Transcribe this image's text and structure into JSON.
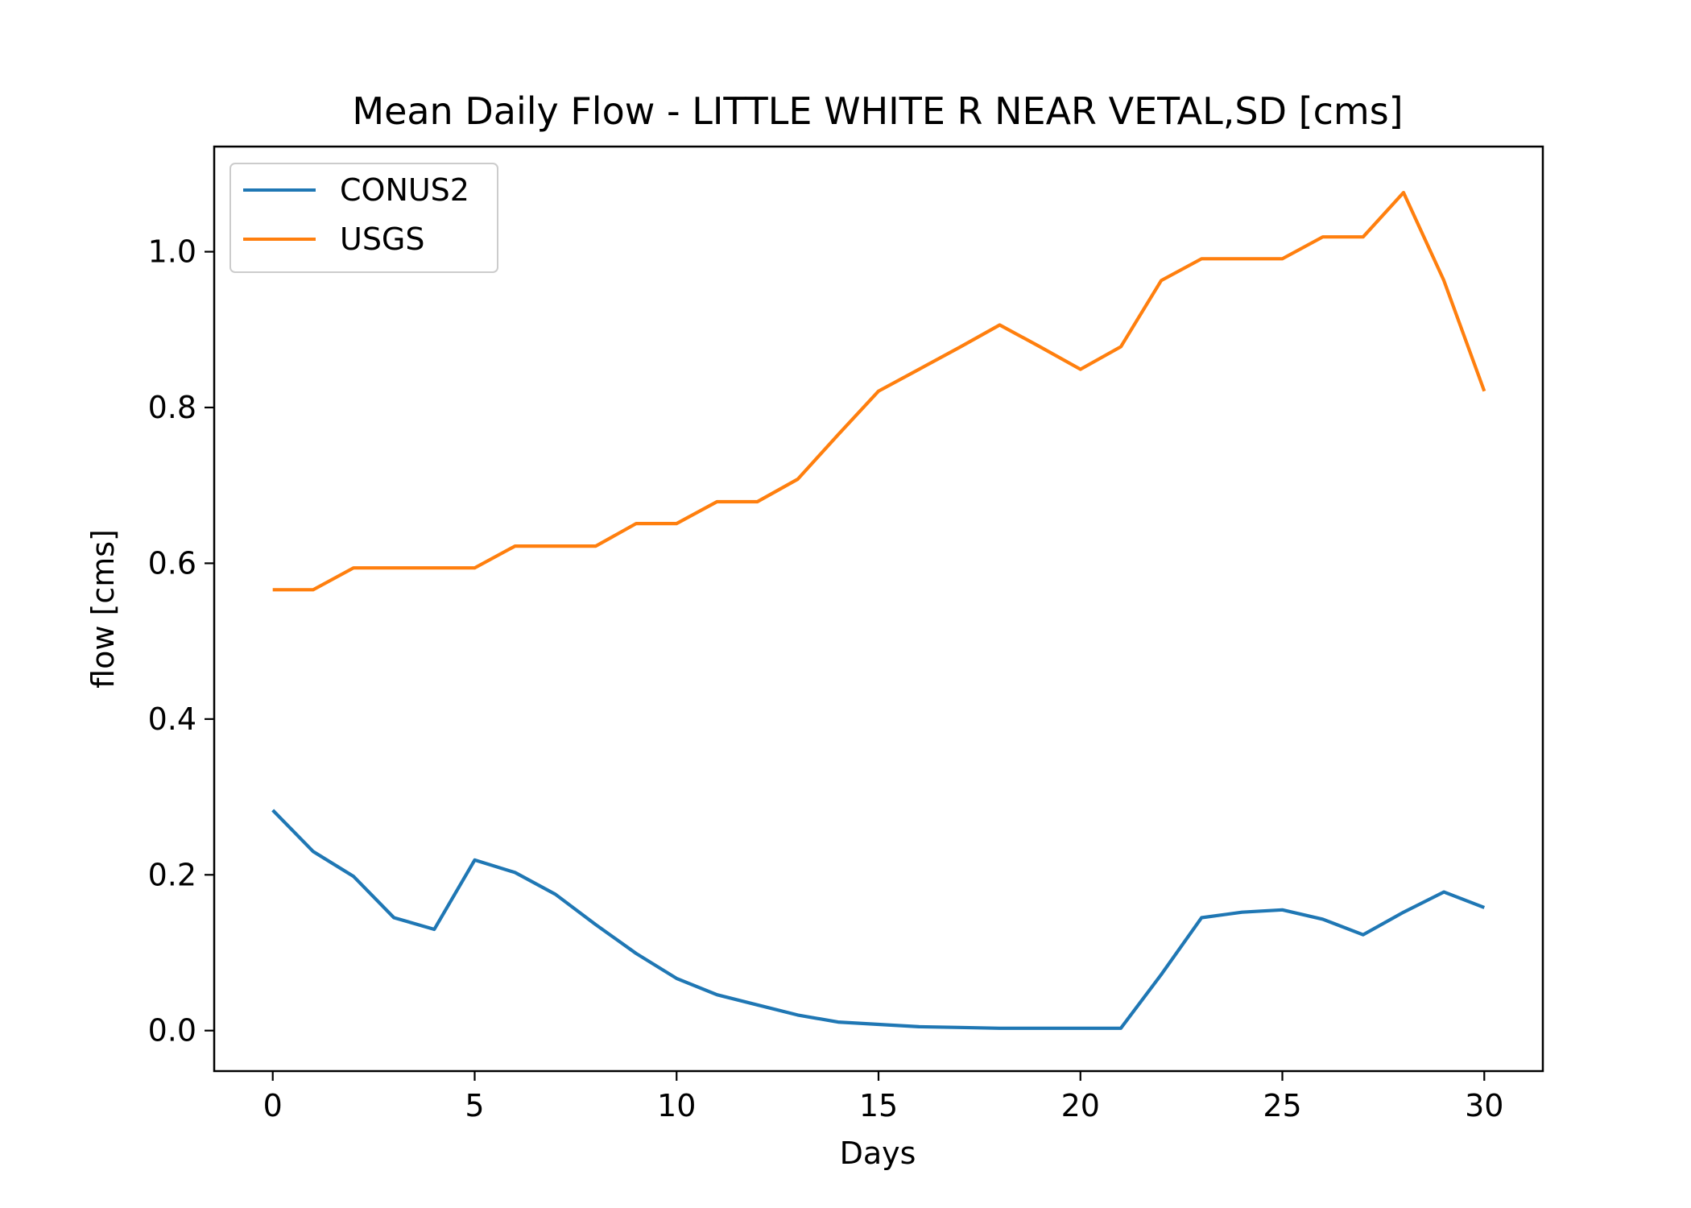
{
  "chart_data": {
    "type": "line",
    "title": "Mean Daily Flow - LITTLE WHITE R NEAR VETAL,SD [cms]",
    "xlabel": "Days",
    "ylabel": "flow [cms]",
    "xlim": [
      -1.45,
      31.45
    ],
    "ylim": [
      -0.052,
      1.135
    ],
    "xticks": [
      0,
      5,
      10,
      15,
      20,
      25,
      30
    ],
    "xtick_labels": [
      "0",
      "5",
      "10",
      "15",
      "20",
      "25",
      "30"
    ],
    "yticks": [
      0.0,
      0.2,
      0.4,
      0.6,
      0.8,
      1.0
    ],
    "ytick_labels": [
      "0.0",
      "0.2",
      "0.4",
      "0.6",
      "0.8",
      "1.0"
    ],
    "grid": false,
    "legend_position": "upper-left",
    "x": [
      0,
      1,
      2,
      3,
      4,
      5,
      6,
      7,
      8,
      9,
      10,
      11,
      12,
      13,
      14,
      15,
      16,
      17,
      18,
      19,
      20,
      21,
      22,
      23,
      24,
      25,
      26,
      27,
      28,
      29,
      30
    ],
    "series": [
      {
        "name": "CONUS2",
        "color": "#1f77b4",
        "values": [
          0.283,
          0.23,
          0.198,
          0.145,
          0.13,
          0.219,
          0.203,
          0.175,
          0.136,
          0.099,
          0.067,
          0.046,
          0.033,
          0.02,
          0.011,
          0.008,
          0.005,
          0.004,
          0.003,
          0.003,
          0.003,
          0.003,
          0.072,
          0.145,
          0.152,
          0.155,
          0.143,
          0.123,
          0.152,
          0.178,
          0.158
        ]
      },
      {
        "name": "USGS",
        "color": "#ff7f0e",
        "values": [
          0.566,
          0.566,
          0.594,
          0.594,
          0.594,
          0.594,
          0.622,
          0.622,
          0.622,
          0.651,
          0.651,
          0.679,
          0.679,
          0.708,
          0.765,
          0.821,
          0.849,
          0.877,
          0.906,
          0.878,
          0.849,
          0.878,
          0.963,
          0.991,
          0.991,
          0.991,
          1.019,
          1.019,
          1.076,
          0.963,
          0.821
        ]
      }
    ]
  }
}
